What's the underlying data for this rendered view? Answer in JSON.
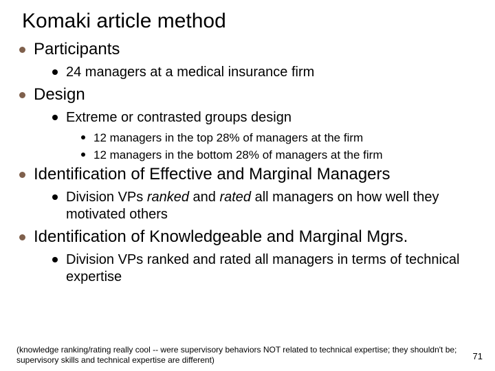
{
  "colors": {
    "background": "#ffffff",
    "text": "#000000",
    "bullet_l1": "#7f604c",
    "bullet_sub": "#000000"
  },
  "typography": {
    "title_fontsize": 30,
    "l1_fontsize": 24,
    "l2_fontsize": 20,
    "l3_fontsize": 17,
    "footnote_fontsize": 12,
    "font_family": "Arial"
  },
  "title": "Komaki article method",
  "sections": {
    "participants": {
      "heading": "Participants",
      "items": [
        "24 managers at a medical insurance firm"
      ]
    },
    "design": {
      "heading": "Design",
      "sub_heading": "Extreme or contrasted groups design",
      "items": [
        "12 managers in the top 28% of managers at the firm",
        "12 managers in the bottom 28% of managers at the firm"
      ]
    },
    "ident_effective": {
      "heading": "Identification of Effective and Marginal Managers",
      "item_pre": "Division VPs ",
      "item_ranked": "ranked",
      "item_mid": " and ",
      "item_rated": "rated",
      "item_post": " all managers on how well they motivated others"
    },
    "ident_knowledge": {
      "heading": "Identification of Knowledgeable and Marginal Mgrs.",
      "item": "Division VPs ranked and rated all managers in terms of technical expertise"
    }
  },
  "footnote": "(knowledge ranking/rating really cool -- were supervisory behaviors NOT related to technical expertise; they shouldn't be; supervisory skills and technical expertise are different)",
  "page_number": "71"
}
